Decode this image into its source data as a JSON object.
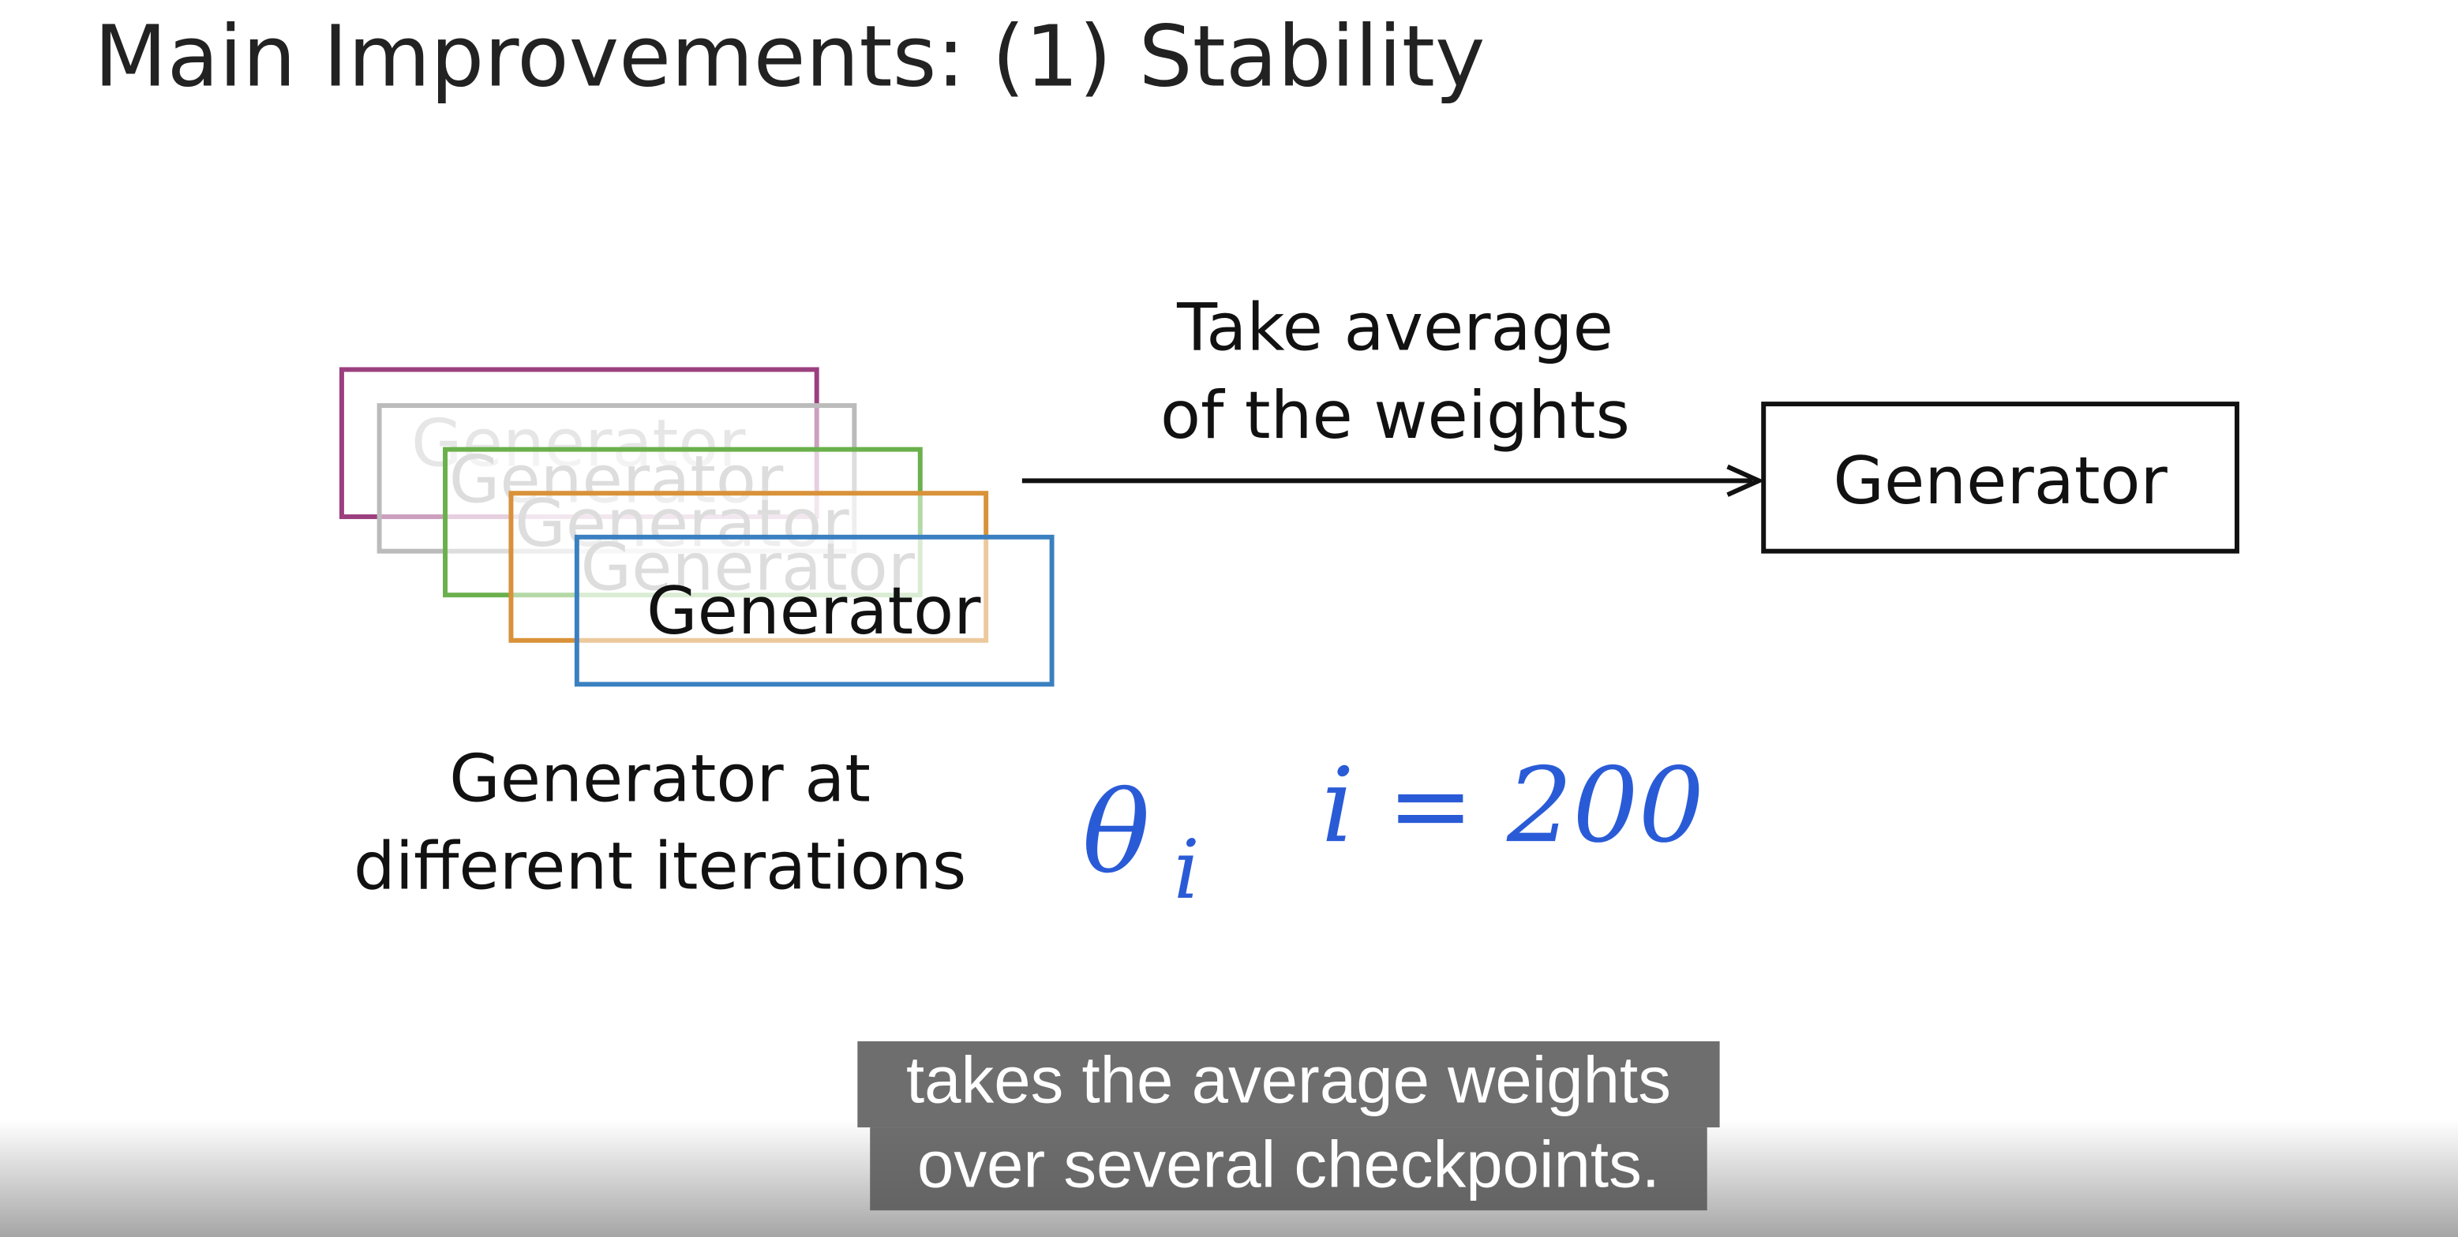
{
  "slide": {
    "title": "Main Improvements: (1) Stability",
    "stack_labels": [
      "Generator",
      "Generator",
      "Generator",
      "Generator",
      "Generator"
    ],
    "arrow_label": [
      "Take average",
      "of the weights"
    ],
    "result_label": "Generator",
    "caption": [
      "Generator at",
      "different iterations"
    ],
    "handwriting": {
      "theta": "θ",
      "subscript": "i",
      "iteration": "i = 200"
    }
  },
  "subtitles": [
    "takes the average weights",
    "over several checkpoints."
  ]
}
